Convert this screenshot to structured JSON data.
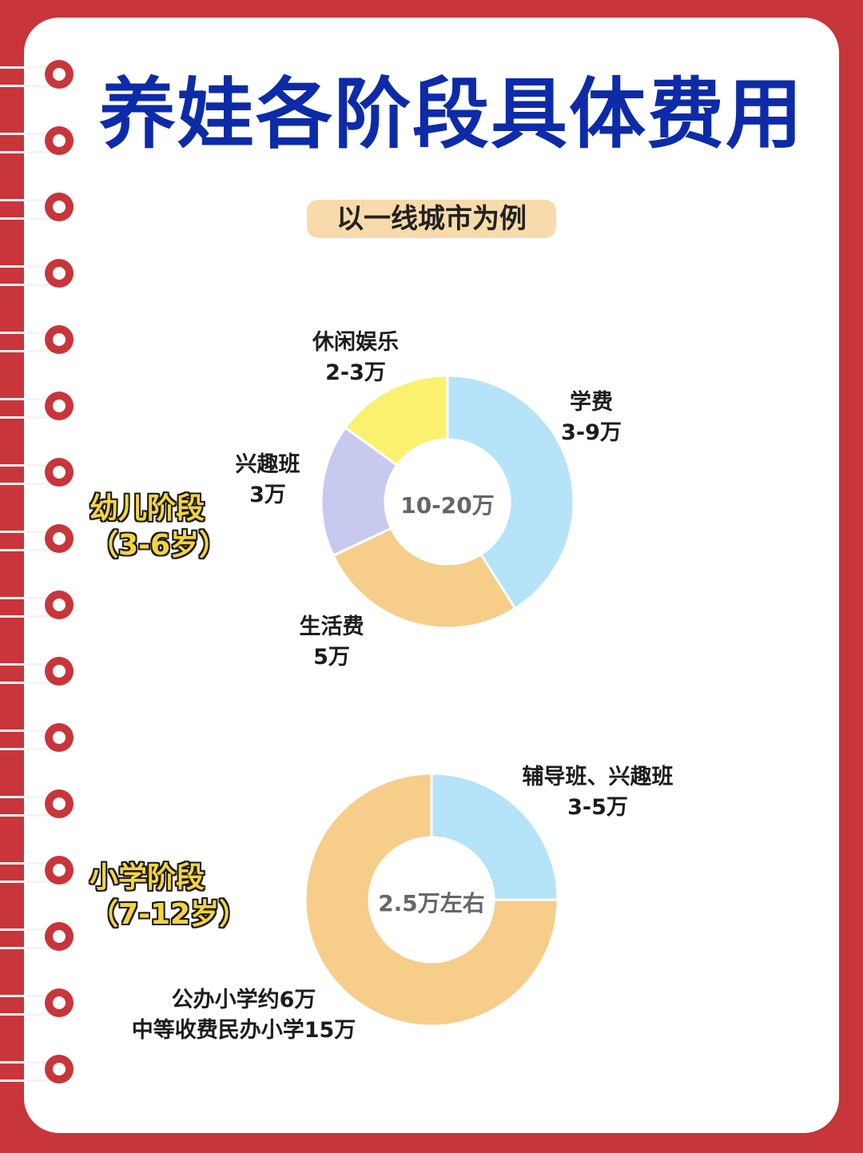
{
  "title": "养娃各阶段具体费用",
  "subtitle_tag": "以一线城市为例",
  "chart_data": [
    {
      "type": "pie",
      "stage_label": "幼儿阶段",
      "stage_age": "（3-6岁）",
      "center_label": "10-20万",
      "slices": [
        {
          "name": "学费",
          "value_label": "3-9万",
          "share": 0.41,
          "color": "#b5e3f8"
        },
        {
          "name": "生活费",
          "value_label": "5万",
          "share": 0.27,
          "color": "#f7cd8a"
        },
        {
          "name": "兴趣班",
          "value_label": "3万",
          "share": 0.17,
          "color": "#c7c9ee"
        },
        {
          "name": "休闲娱乐",
          "value_label": "2-3万",
          "share": 0.15,
          "color": "#faf16f"
        }
      ]
    },
    {
      "type": "pie",
      "stage_label": "小学阶段",
      "stage_age": "（7-12岁）",
      "center_label": "2.5万左右",
      "slices": [
        {
          "name": "辅导班、兴趣班",
          "value_label": "3-5万",
          "share": 0.25,
          "color": "#b5e3f8"
        },
        {
          "name": "公办小学约6万",
          "value_label": "中等收费民办小学15万",
          "share": 0.75,
          "color": "#f7cd8a"
        }
      ]
    }
  ]
}
